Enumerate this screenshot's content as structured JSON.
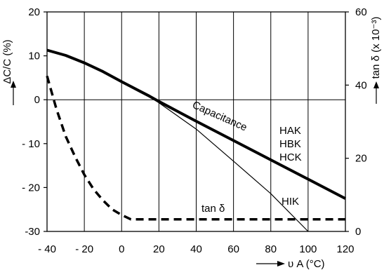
{
  "chart_data": {
    "type": "line",
    "title": "",
    "xlabel": "υ A (°C)",
    "ylabel_left": "ΔC/C (%)",
    "ylabel_right": "tan δ (x 10⁻³)",
    "xlim": [
      -40,
      120
    ],
    "ylim_left": [
      -30,
      20
    ],
    "ylim_right": [
      0,
      60
    ],
    "x_ticks": [
      "- 40",
      "- 20",
      "0",
      "20",
      "40",
      "60",
      "80",
      "100",
      "120"
    ],
    "y_left_ticks": [
      "20",
      "10",
      "0",
      "- 10",
      "- 20",
      "-30"
    ],
    "y_right_ticks": [
      "60",
      "40",
      "20",
      "0"
    ],
    "grid": true,
    "series": [
      {
        "name": "Capacitance",
        "axis": "left",
        "style": "thick",
        "x": [
          -40,
          -30,
          -20,
          -10,
          0,
          10,
          15,
          20,
          40,
          60,
          80,
          100,
          120
        ],
        "y": [
          11.3,
          10.1,
          8.4,
          6.4,
          4.1,
          1.9,
          0.8,
          -0.4,
          -4.9,
          -9.3,
          -13.7,
          -18.1,
          -22.5
        ]
      },
      {
        "name": "HIK",
        "axis": "left",
        "style": "thin",
        "x": [
          15,
          40,
          60,
          80,
          100
        ],
        "y": [
          0.8,
          -6.7,
          -14.0,
          -21.4,
          -30
        ]
      },
      {
        "name": "tan δ",
        "axis": "right",
        "style": "dashed",
        "x": [
          -40,
          -35,
          -30,
          -25,
          -20,
          -15,
          -10,
          -5,
          0,
          5,
          10,
          120
        ],
        "y": [
          42.5,
          33.5,
          26.0,
          20.5,
          15.5,
          11.5,
          8.5,
          6.0,
          4.5,
          3.3,
          3.3,
          3.3
        ]
      }
    ],
    "annotations": {
      "capacitance": "Capacitance",
      "hak": "HAK",
      "hbk": "HBK",
      "hck": "HCK",
      "hik": "HIK",
      "tand": "tan δ"
    }
  }
}
